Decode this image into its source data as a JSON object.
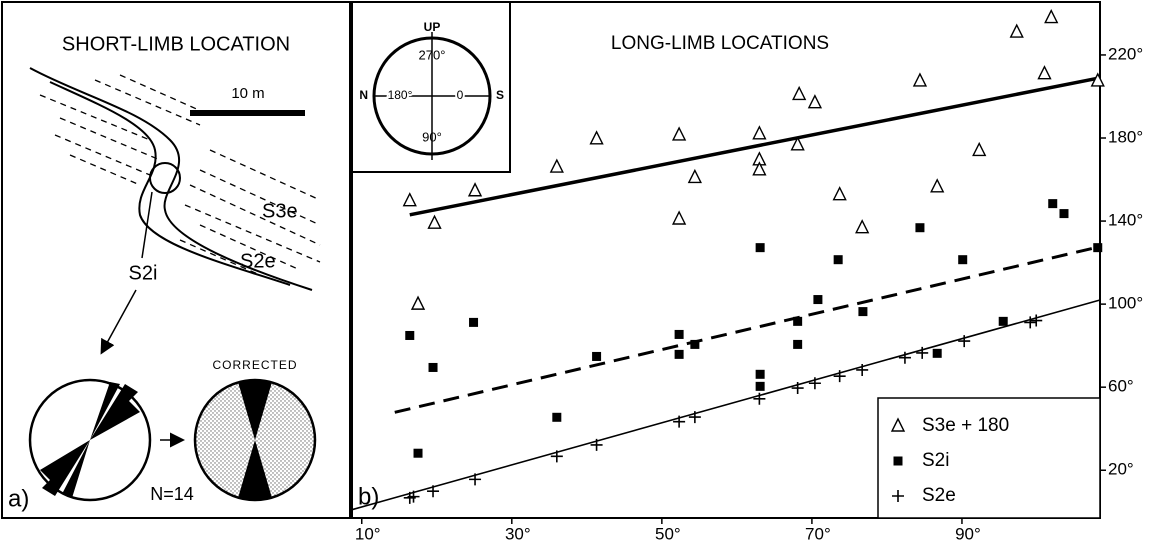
{
  "panel_a": {
    "title": "SHORT-LIMB LOCATION",
    "scale": "10 m",
    "label_s3e": "S3e",
    "label_s2i": "S2i",
    "label_s2e": "S2e",
    "corrected": "CORRECTED",
    "count": "N=14",
    "panel_label": "a)"
  },
  "chart_data": {
    "type": "scatter",
    "title": "LONG-LIMB LOCATIONS",
    "panel_label": "b)",
    "xlim": [
      8.7,
      108.4
    ],
    "ylim": [
      -3,
      245.5
    ],
    "xticks": [
      {
        "value": 10,
        "label": "10°"
      },
      {
        "value": 30,
        "label": "30°"
      },
      {
        "value": 50,
        "label": "50°"
      },
      {
        "value": 70,
        "label": "70°"
      },
      {
        "value": 90,
        "label": "90°"
      }
    ],
    "yticks": [
      {
        "value": 20,
        "label": "20°"
      },
      {
        "value": 60,
        "label": "60°"
      },
      {
        "value": 100,
        "label": "100°"
      },
      {
        "value": 140,
        "label": "140°"
      },
      {
        "value": 180,
        "label": "180°"
      },
      {
        "value": 220,
        "label": "220°"
      }
    ],
    "legend": "bottom-right",
    "series": [
      {
        "name": "S3e + 180",
        "marker": "triangle",
        "color": "#000000",
        "x": [
          16.4,
          19.7,
          17.5,
          25.1,
          36,
          41.3,
          52.3,
          52.3,
          54.4,
          63,
          63,
          63,
          68.1,
          68.3,
          70.4,
          73.7,
          76.7,
          84.4,
          86.7,
          92.3,
          97.3,
          101,
          101.9,
          108.1
        ],
        "values": [
          149.8,
          139,
          100,
          154.6,
          166,
          179.6,
          181.5,
          141,
          161,
          182,
          169.5,
          164.7,
          176.7,
          201,
          197,
          152.7,
          136.8,
          207.5,
          156.5,
          174,
          231,
          211,
          238,
          207.5
        ]
      },
      {
        "name": "S2i",
        "marker": "square",
        "color": "#000000",
        "x": [
          16.4,
          17.5,
          19.5,
          24.9,
          36,
          41.3,
          52.3,
          52.3,
          54.4,
          63.1,
          63.1,
          63.1,
          68.1,
          68.1,
          70.8,
          73.5,
          76.8,
          84.4,
          86.7,
          90.1,
          95.5,
          102.1,
          103.6,
          108.1
        ],
        "values": [
          84.9,
          28.2,
          69.5,
          91.2,
          45.5,
          74.8,
          85.4,
          75.8,
          80.6,
          127.2,
          66.2,
          60.4,
          91.7,
          80.6,
          102.2,
          121.4,
          96.4,
          136.8,
          76.3,
          121.4,
          91.7,
          148.4,
          143.6,
          127.2
        ]
      },
      {
        "name": "S2e",
        "marker": "plus",
        "color": "#000000",
        "x": [
          16.4,
          16.9,
          19.5,
          25.1,
          36,
          41.3,
          52.3,
          54.4,
          63,
          68.1,
          70.4,
          73.7,
          76.7,
          82.4,
          84.7,
          90.3,
          99.1,
          99.9
        ],
        "values": [
          6.7,
          7.3,
          9.9,
          15.6,
          26.7,
          32.2,
          43.4,
          45.6,
          54.4,
          59.6,
          61.9,
          65.3,
          68.3,
          74.2,
          76.5,
          82.2,
          91.2,
          92.1
        ]
      }
    ],
    "fit_lines": [
      {
        "style": "solid-thick",
        "x": [
          16.4,
          108.4
        ],
        "values": [
          143,
          209
        ]
      },
      {
        "style": "dashed",
        "x": [
          14.4,
          108.4
        ],
        "values": [
          47.9,
          127.7
        ]
      },
      {
        "style": "solid-thin",
        "x": [
          8.7,
          108.4
        ],
        "values": [
          1,
          102
        ]
      }
    ],
    "inset": {
      "up": "UP",
      "top": "270°",
      "left": "N",
      "left_angle": "180°",
      "center": "0",
      "right": "S",
      "bottom": "90°"
    }
  }
}
